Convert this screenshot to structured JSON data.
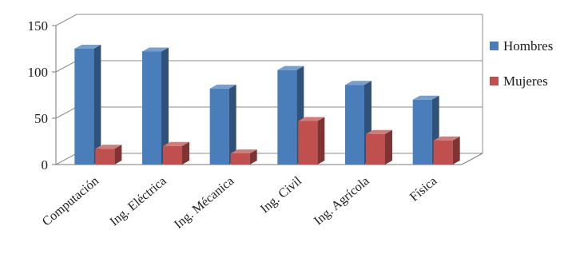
{
  "chart_data": {
    "type": "bar",
    "categories": [
      "Computación",
      "Ing. Eléctrica",
      "Ing. Mécanica",
      "Ing. Civil",
      "Ing. Agrícola",
      "Física"
    ],
    "series": [
      {
        "name": "Hombres",
        "values": [
          125,
          122,
          82,
          102,
          86,
          70
        ],
        "color": "#4a7ebb"
      },
      {
        "name": "Mujeres",
        "values": [
          17,
          20,
          12,
          47,
          33,
          26
        ],
        "color": "#c0504d"
      }
    ],
    "yticks": [
      0,
      50,
      100,
      150
    ],
    "ylim": [
      0,
      150
    ],
    "grid": true,
    "legend_position": "right",
    "three_d": true
  }
}
